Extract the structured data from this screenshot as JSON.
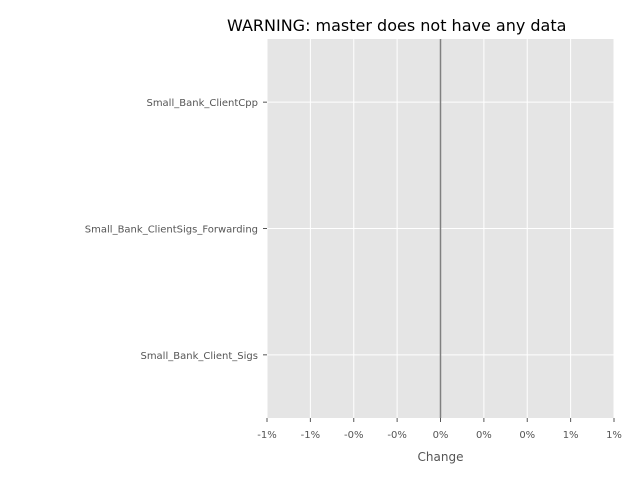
{
  "chart_data": {
    "type": "bar",
    "orientation": "horizontal",
    "title": "WARNING: master does not have any data",
    "xlabel": "Change",
    "ylabel": "",
    "categories": [
      "Small_Bank_ClientCpp",
      "Small_Bank_ClientSigs_Forwarding",
      "Small_Bank_Client_Sigs"
    ],
    "values": [
      0,
      0,
      0
    ],
    "xlim": [
      -1,
      1
    ],
    "x_ticks": [
      -1,
      -0.75,
      -0.5,
      -0.25,
      0,
      0.25,
      0.5,
      0.75,
      1
    ],
    "x_tick_labels": [
      "-1%",
      "-1%",
      "-0%",
      "-0%",
      "0%",
      "0%",
      "0%",
      "1%",
      "1%"
    ],
    "zero_line": true,
    "grid": true,
    "legend": "none",
    "colors": {
      "plot_background": "#e5e5e5",
      "grid": "#ffffff",
      "zero_line": "#808080",
      "tick_text": "#555555",
      "title_text": "#000000"
    }
  }
}
